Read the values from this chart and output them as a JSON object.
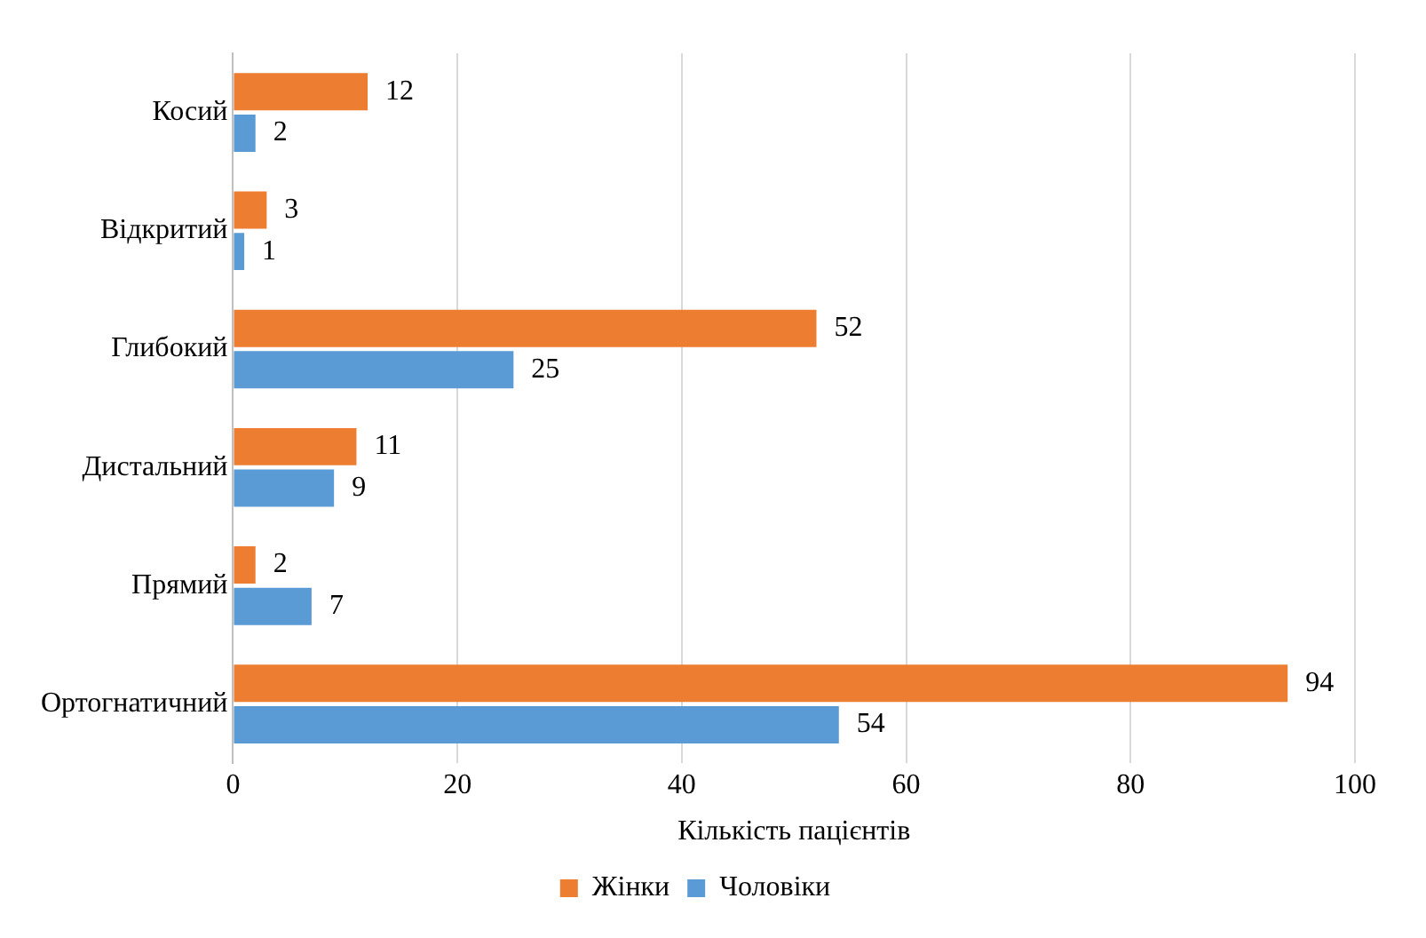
{
  "chart_data": {
    "type": "bar",
    "orientation": "horizontal",
    "xlabel": "Кількість пацієнтів",
    "categories": [
      "Косий",
      "Відкритий",
      "Глибокий",
      "Дистальний",
      "Прямий",
      "Ортогнатичний"
    ],
    "series": [
      {
        "name": "Жінки",
        "color": "#ed7d31",
        "values": [
          12,
          3,
          52,
          11,
          2,
          94
        ]
      },
      {
        "name": "Чоловіки",
        "color": "#5b9bd5",
        "values": [
          2,
          1,
          25,
          9,
          7,
          54
        ]
      }
    ],
    "xlim": [
      0,
      100
    ],
    "xticks": [
      0,
      20,
      40,
      60,
      80,
      100
    ],
    "grid": "x",
    "legend": "bottom",
    "data_labels": true
  }
}
